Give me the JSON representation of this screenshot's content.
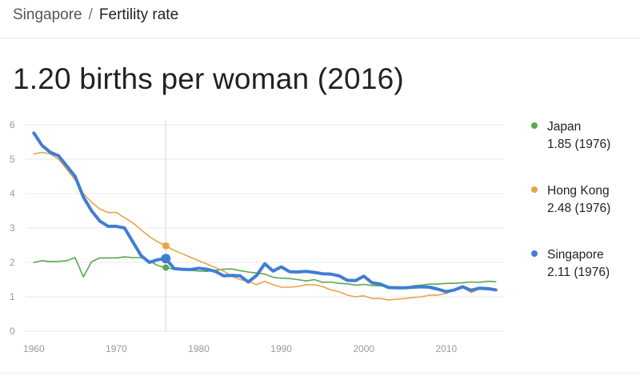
{
  "breadcrumb": {
    "parent": "Singapore",
    "separator": "/",
    "current": "Fertility rate"
  },
  "headline": "1.20 births per woman (2016)",
  "colors": {
    "japan": "#5aa84f",
    "hong_kong": "#e8a44a",
    "singapore": "#3f7ed3",
    "grid": "#e9e9e9",
    "axis_text": "#9a9a9a",
    "hover_line": "#d9d9d9"
  },
  "chart_data": {
    "type": "line",
    "title": "",
    "xlabel": "",
    "ylabel": "",
    "xlim": [
      1959,
      2017
    ],
    "ylim": [
      0,
      6
    ],
    "x_ticks": [
      1960,
      1970,
      1980,
      1990,
      2000,
      2010
    ],
    "y_ticks": [
      0,
      1,
      2,
      3,
      4,
      5,
      6
    ],
    "grid": true,
    "legend_position": "right",
    "highlight_year": 1976,
    "series": [
      {
        "name": "Japan",
        "color_key": "japan",
        "highlight_value": "1.85 (1976)",
        "x": [
          1960,
          1961,
          1962,
          1963,
          1964,
          1965,
          1966,
          1967,
          1968,
          1969,
          1970,
          1971,
          1972,
          1973,
          1974,
          1975,
          1976,
          1977,
          1978,
          1979,
          1980,
          1981,
          1982,
          1983,
          1984,
          1985,
          1986,
          1987,
          1988,
          1989,
          1990,
          1991,
          1992,
          1993,
          1994,
          1995,
          1996,
          1997,
          1998,
          1999,
          2000,
          2001,
          2002,
          2003,
          2004,
          2005,
          2006,
          2007,
          2008,
          2009,
          2010,
          2011,
          2012,
          2013,
          2014,
          2015,
          2016
        ],
        "y": [
          2.0,
          2.05,
          2.02,
          2.03,
          2.05,
          2.14,
          1.58,
          2.02,
          2.13,
          2.13,
          2.13,
          2.16,
          2.14,
          2.14,
          2.05,
          1.91,
          1.85,
          1.8,
          1.79,
          1.77,
          1.75,
          1.74,
          1.77,
          1.8,
          1.81,
          1.76,
          1.72,
          1.69,
          1.66,
          1.57,
          1.54,
          1.53,
          1.5,
          1.46,
          1.5,
          1.42,
          1.43,
          1.39,
          1.38,
          1.34,
          1.36,
          1.33,
          1.32,
          1.29,
          1.29,
          1.26,
          1.32,
          1.34,
          1.37,
          1.37,
          1.39,
          1.39,
          1.41,
          1.43,
          1.42,
          1.45,
          1.44
        ]
      },
      {
        "name": "Hong Kong",
        "color_key": "hong_kong",
        "highlight_value": "2.48 (1976)",
        "x": [
          1960,
          1961,
          1962,
          1963,
          1964,
          1965,
          1966,
          1967,
          1968,
          1969,
          1970,
          1971,
          1972,
          1973,
          1974,
          1975,
          1976,
          1977,
          1978,
          1979,
          1980,
          1981,
          1982,
          1983,
          1984,
          1985,
          1986,
          1987,
          1988,
          1989,
          1990,
          1991,
          1992,
          1993,
          1994,
          1995,
          1996,
          1997,
          1998,
          1999,
          2000,
          2001,
          2002,
          2003,
          2004,
          2005,
          2006,
          2007,
          2008,
          2009,
          2010,
          2011,
          2012,
          2013,
          2014,
          2015,
          2016
        ],
        "y": [
          5.15,
          5.2,
          5.15,
          5.0,
          4.7,
          4.4,
          4.0,
          3.75,
          3.55,
          3.45,
          3.45,
          3.3,
          3.15,
          2.95,
          2.75,
          2.6,
          2.48,
          2.35,
          2.25,
          2.15,
          2.05,
          1.95,
          1.85,
          1.75,
          1.6,
          1.5,
          1.45,
          1.35,
          1.45,
          1.35,
          1.28,
          1.28,
          1.3,
          1.35,
          1.35,
          1.3,
          1.2,
          1.15,
          1.05,
          1.0,
          1.03,
          0.95,
          0.95,
          0.91,
          0.93,
          0.95,
          0.98,
          1.0,
          1.05,
          1.05,
          1.1,
          1.2,
          1.28,
          1.12,
          1.23,
          1.2,
          1.21
        ]
      },
      {
        "name": "Singapore",
        "color_key": "singapore",
        "highlight_value": "2.11 (1976)",
        "x": [
          1960,
          1961,
          1962,
          1963,
          1964,
          1965,
          1966,
          1967,
          1968,
          1969,
          1970,
          1971,
          1972,
          1973,
          1974,
          1975,
          1976,
          1977,
          1978,
          1979,
          1980,
          1981,
          1982,
          1983,
          1984,
          1985,
          1986,
          1987,
          1988,
          1989,
          1990,
          1991,
          1992,
          1993,
          1994,
          1995,
          1996,
          1997,
          1998,
          1999,
          2000,
          2001,
          2002,
          2003,
          2004,
          2005,
          2006,
          2007,
          2008,
          2009,
          2010,
          2011,
          2012,
          2013,
          2014,
          2015,
          2016
        ],
        "y": [
          5.76,
          5.4,
          5.2,
          5.1,
          4.8,
          4.5,
          3.9,
          3.5,
          3.2,
          3.05,
          3.05,
          3.0,
          2.6,
          2.2,
          2.0,
          2.08,
          2.11,
          1.82,
          1.8,
          1.79,
          1.83,
          1.8,
          1.74,
          1.61,
          1.62,
          1.61,
          1.43,
          1.62,
          1.96,
          1.75,
          1.87,
          1.73,
          1.72,
          1.74,
          1.71,
          1.67,
          1.66,
          1.61,
          1.48,
          1.47,
          1.6,
          1.41,
          1.37,
          1.27,
          1.26,
          1.26,
          1.28,
          1.29,
          1.28,
          1.22,
          1.15,
          1.2,
          1.29,
          1.19,
          1.25,
          1.24,
          1.2
        ]
      }
    ]
  }
}
